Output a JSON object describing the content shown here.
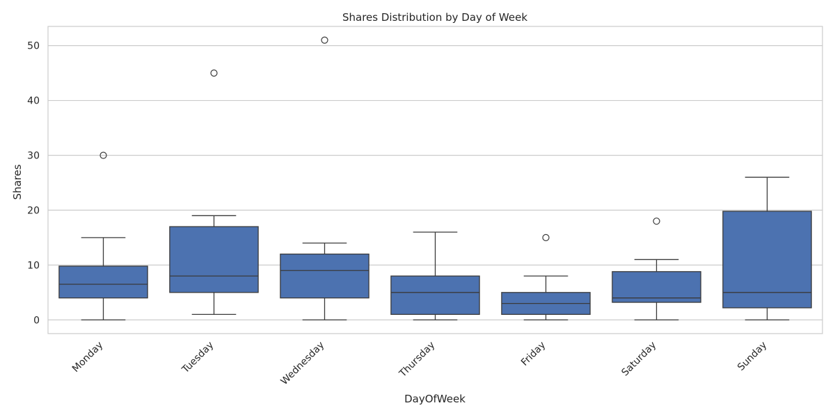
{
  "chart_data": {
    "type": "box",
    "title": "Shares Distribution by Day of Week",
    "xlabel": "DayOfWeek",
    "ylabel": "Shares",
    "ylim": [
      -2.5,
      53.5
    ],
    "yticks": [
      0,
      10,
      20,
      30,
      40,
      50
    ],
    "grid": true,
    "box_color": "#4c72b0",
    "line_color": "#3a3a3a",
    "categories": [
      "Monday",
      "Tuesday",
      "Wednesday",
      "Thursday",
      "Friday",
      "Saturday",
      "Sunday"
    ],
    "boxes": [
      {
        "category": "Monday",
        "whisker_low": 0,
        "q1": 4,
        "median": 6.5,
        "q3": 9.8,
        "whisker_high": 15,
        "outliers": [
          30
        ]
      },
      {
        "category": "Tuesday",
        "whisker_low": 1,
        "q1": 5,
        "median": 8,
        "q3": 17,
        "whisker_high": 19,
        "outliers": [
          45
        ]
      },
      {
        "category": "Wednesday",
        "whisker_low": 0,
        "q1": 4,
        "median": 9,
        "q3": 12,
        "whisker_high": 14,
        "outliers": [
          51
        ]
      },
      {
        "category": "Thursday",
        "whisker_low": 0,
        "q1": 1,
        "median": 5,
        "q3": 8,
        "whisker_high": 16,
        "outliers": []
      },
      {
        "category": "Friday",
        "whisker_low": 0,
        "q1": 1,
        "median": 3,
        "q3": 5,
        "whisker_high": 8,
        "outliers": [
          15
        ]
      },
      {
        "category": "Saturday",
        "whisker_low": 0,
        "q1": 3.2,
        "median": 4,
        "q3": 8.8,
        "whisker_high": 11,
        "outliers": [
          18
        ]
      },
      {
        "category": "Sunday",
        "whisker_low": 0,
        "q1": 2.2,
        "median": 5,
        "q3": 19.8,
        "whisker_high": 26,
        "outliers": []
      }
    ]
  }
}
